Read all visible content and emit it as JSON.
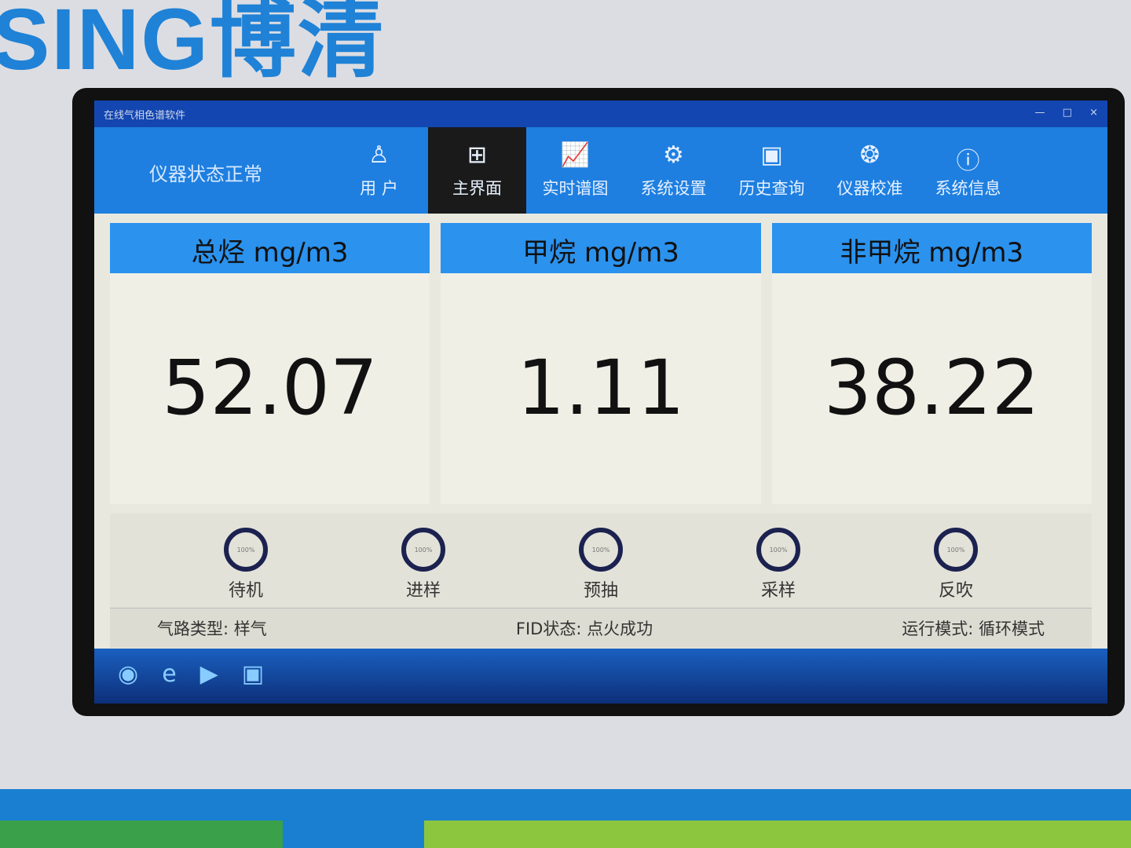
{
  "brand": "SING博清",
  "window": {
    "title": "在线气相色谱软件",
    "controls": [
      "—",
      "□",
      "×"
    ]
  },
  "nav": {
    "status": "仪器状态正常",
    "items": [
      {
        "label": "用 户",
        "icon": "user-icon",
        "active": false
      },
      {
        "label": "主界面",
        "icon": "grid-icon",
        "active": true
      },
      {
        "label": "实时谱图",
        "icon": "chart-icon",
        "active": false
      },
      {
        "label": "系统设置",
        "icon": "gear-icon",
        "active": false
      },
      {
        "label": "历史查询",
        "icon": "history-icon",
        "active": false
      },
      {
        "label": "仪器校准",
        "icon": "calibrate-icon",
        "active": false
      },
      {
        "label": "系统信息",
        "icon": "info-icon",
        "active": false
      }
    ]
  },
  "panels": [
    {
      "title": "总烃 mg/m3",
      "value": "52.07"
    },
    {
      "title": "甲烷 mg/m3",
      "value": "1.11"
    },
    {
      "title": "非甲烷 mg/m3",
      "value": "38.22"
    }
  ],
  "steps": [
    {
      "label": "待机",
      "progress": "100%"
    },
    {
      "label": "进样",
      "progress": "100%"
    },
    {
      "label": "预抽",
      "progress": "100%"
    },
    {
      "label": "采样",
      "progress": "100%"
    },
    {
      "label": "反吹",
      "progress": "100%"
    }
  ],
  "info": {
    "gas_type": "气路类型: 样气",
    "fid": "FID状态: 点火成功",
    "mode": "运行模式: 循环模式"
  },
  "colors": {
    "nav": "#1e7fe0",
    "panel_header": "#2b92ee",
    "active_nav": "#1a1a1a"
  }
}
